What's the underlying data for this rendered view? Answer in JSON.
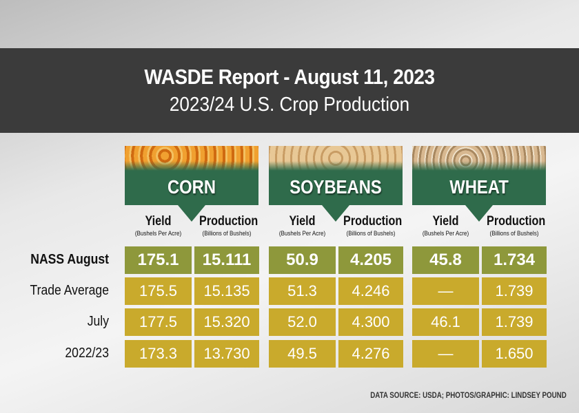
{
  "header": {
    "title": "WASDE Report - August 11, 2023",
    "subtitle": "2023/24 U.S. Crop Production"
  },
  "colors": {
    "header_band": "#3b3b3b",
    "crop_green": "#2f6b4b",
    "nass_row": "#8e983b",
    "other_rows": "#c9aa2c"
  },
  "chart_data": {
    "type": "table",
    "crops": [
      {
        "name": "CORN",
        "photo": "corn-kernels",
        "columns": [
          {
            "label": "Yield",
            "unit": "(Bushels Per Acre)"
          },
          {
            "label": "Production",
            "unit": "(Billions of Bushels)"
          }
        ]
      },
      {
        "name": "SOYBEANS",
        "photo": "soybeans",
        "columns": [
          {
            "label": "Yield",
            "unit": "(Bushels Per Acre)"
          },
          {
            "label": "Production",
            "unit": "(Billions of Bushels)"
          }
        ]
      },
      {
        "name": "WHEAT",
        "photo": "wheat-kernels",
        "columns": [
          {
            "label": "Yield",
            "unit": "(Bushels Per Acre)"
          },
          {
            "label": "Production",
            "unit": "(Billions of Bushels)"
          }
        ]
      }
    ],
    "rows": [
      {
        "label": "NASS August",
        "values": [
          "175.1",
          "15.111",
          "50.9",
          "4.205",
          "45.8",
          "1.734"
        ]
      },
      {
        "label": "Trade Average",
        "values": [
          "175.5",
          "15.135",
          "51.3",
          "4.246",
          "—",
          "1.739"
        ]
      },
      {
        "label": "July",
        "values": [
          "177.5",
          "15.320",
          "52.0",
          "4.300",
          "46.1",
          "1.739"
        ]
      },
      {
        "label": "2022/23",
        "values": [
          "173.3",
          "13.730",
          "49.5",
          "4.276",
          "—",
          "1.650"
        ]
      }
    ]
  },
  "footer": {
    "source": "DATA SOURCE: USDA; PHOTOS/GRAPHIC: LINDSEY POUND"
  }
}
